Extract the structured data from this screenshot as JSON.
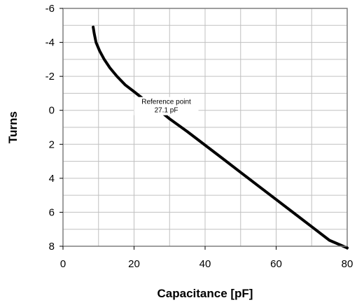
{
  "chart_data": {
    "type": "line",
    "title": "",
    "xlabel": "Capacitance [pF]",
    "ylabel": "Turns",
    "xlim": [
      0,
      80
    ],
    "ylim": [
      8,
      -6
    ],
    "y_inverted": true,
    "grid": true,
    "x_major_ticks": [
      0,
      20,
      40,
      60,
      80
    ],
    "x_tick_labels": [
      "0",
      "20",
      "40",
      "60",
      "80"
    ],
    "x_minor_step": 10,
    "y_major_ticks": [
      -6,
      -4,
      -2,
      0,
      2,
      4,
      6,
      8
    ],
    "y_tick_labels": [
      "-6",
      "-4",
      "-2",
      "0",
      "2",
      "4",
      "6",
      "8"
    ],
    "y_minor_step": 1,
    "series": [
      {
        "color": "#000000",
        "x": [
          8.5,
          8.8,
          9.3,
          10.3,
          11.6,
          13.2,
          15.2,
          17.5,
          20.0,
          23.0,
          27.1,
          30.0,
          35.0,
          40.0,
          45.0,
          50.0,
          55.0,
          60.0,
          65.0,
          70.0,
          75.0,
          80.0
        ],
        "y": [
          -4.9,
          -4.5,
          -4.0,
          -3.5,
          -3.0,
          -2.5,
          -2.0,
          -1.5,
          -1.1,
          -0.6,
          0.0,
          0.5,
          1.25,
          2.05,
          2.85,
          3.65,
          4.45,
          5.25,
          6.05,
          6.85,
          7.65,
          8.1
        ]
      }
    ],
    "annotations": [
      {
        "label_line1": "Reference point",
        "label_line2": "27.1 pF",
        "x": 27.1,
        "y": 0
      }
    ]
  }
}
